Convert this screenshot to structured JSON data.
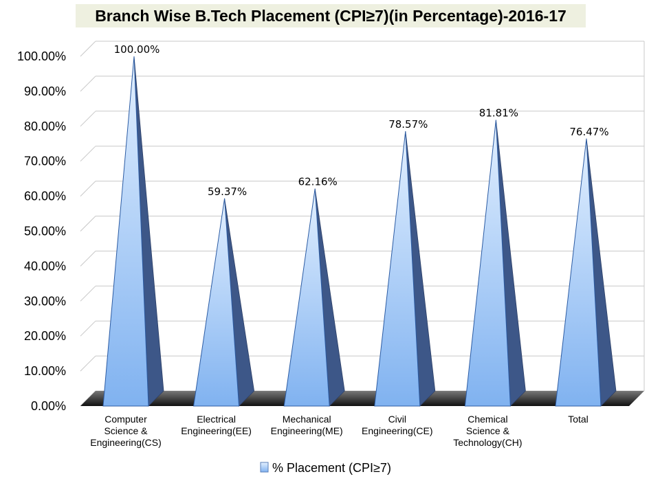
{
  "chart_data": {
    "type": "bar",
    "title": "Branch Wise B.Tech Placement (CPI≥7)(in Percentage)-2016-17",
    "categories": [
      [
        "Computer",
        "Science &",
        "Engineering(CS)"
      ],
      [
        "Electrical",
        "Engineering(EE)"
      ],
      [
        "Mechanical",
        "Engineering(ME)"
      ],
      [
        "Civil",
        "Engineering(CE)"
      ],
      [
        "Chemical",
        "Science &",
        "Technology(CH)"
      ],
      [
        "Total"
      ]
    ],
    "series": [
      {
        "name": "% Placement  (CPI≥7)",
        "values": [
          100.0,
          59.37,
          62.16,
          78.57,
          81.81,
          76.47
        ],
        "labels": [
          "100.00%",
          "59.37%",
          "62.16%",
          "78.57%",
          "81.81%",
          "76.47%"
        ]
      }
    ],
    "yticks": [
      "0.00%",
      "10.00%",
      "20.00%",
      "30.00%",
      "40.00%",
      "50.00%",
      "60.00%",
      "70.00%",
      "80.00%",
      "90.00%",
      "100.00%"
    ],
    "ylim": [
      0,
      100
    ],
    "grid": true,
    "legend": "bottom",
    "colors": {
      "front_light": "#e3f0ff",
      "front_dark": "#80b2f0",
      "side": "#3d5788",
      "floor": "#2e2e2e",
      "grid": "#c8c8c8"
    }
  }
}
